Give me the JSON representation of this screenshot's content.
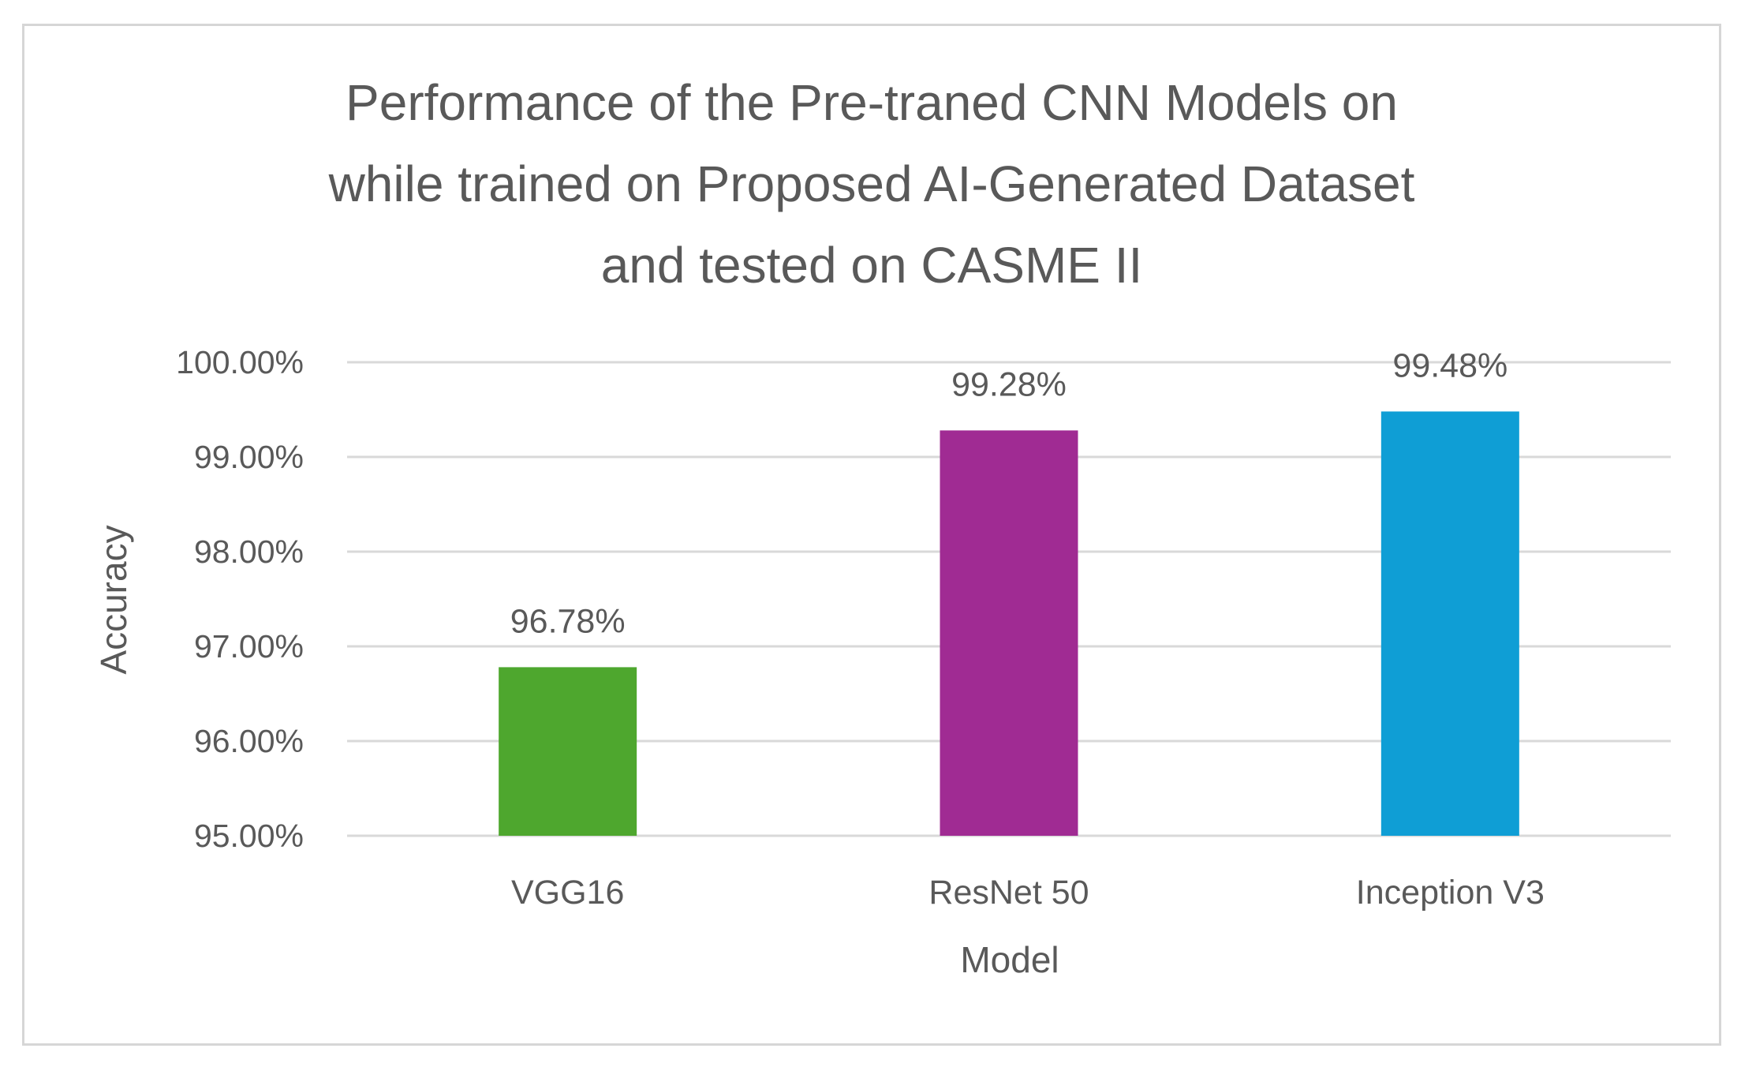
{
  "chart_data": {
    "type": "bar",
    "title_lines": [
      "Performance of the Pre-traned CNN Models on",
      "while trained on Proposed AI-Generated Dataset",
      "and tested on CASME II"
    ],
    "xlabel": "Model",
    "ylabel": "Accuracy",
    "categories": [
      "VGG16",
      "ResNet 50",
      "Inception V3"
    ],
    "values": [
      96.78,
      99.28,
      99.48
    ],
    "data_labels": [
      "96.78%",
      "99.28%",
      "99.48%"
    ],
    "colors": [
      "#4ea72e",
      "#a02b93",
      "#0f9ed5"
    ],
    "ylim": [
      95,
      100
    ],
    "yticks": [
      95,
      96,
      97,
      98,
      99,
      100
    ],
    "ytick_labels": [
      "95.00%",
      "96.00%",
      "97.00%",
      "98.00%",
      "99.00%",
      "100.00%"
    ],
    "grid": true,
    "legend": "none"
  }
}
